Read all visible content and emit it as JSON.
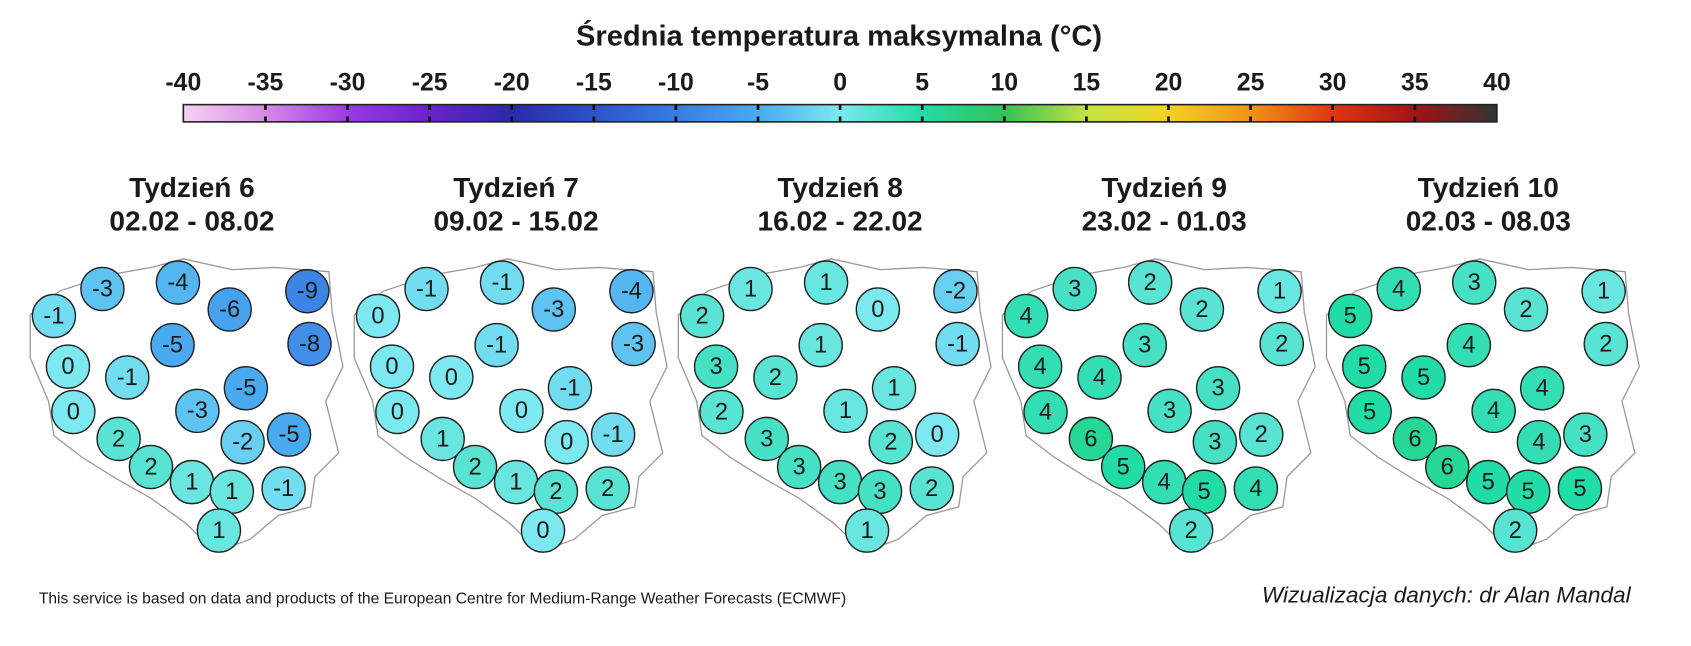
{
  "title": "Średnia temperatura maksymalna (°C)",
  "colorbar": {
    "ticks": [
      -40,
      -35,
      -30,
      -25,
      -20,
      -15,
      -10,
      -5,
      0,
      5,
      10,
      15,
      20,
      25,
      30,
      35,
      40
    ],
    "colors": [
      "#f6d2f2",
      "#d98ae6",
      "#9a3ae2",
      "#6a22c8",
      "#2a2aa8",
      "#2c52c8",
      "#3a7ce2",
      "#4aaaf0",
      "#7ce8f0",
      "#22dca6",
      "#34c258",
      "#c4e244",
      "#f2d224",
      "#f09418",
      "#e03414",
      "#a01414",
      "#333333"
    ]
  },
  "panels": [
    {
      "title": "Tydzień 6",
      "dates": "02.02 - 08.02",
      "values": [
        -3,
        -4,
        -9,
        -1,
        -6,
        -8,
        -5,
        0,
        -1,
        -5,
        0,
        -3,
        2,
        -2,
        -5,
        2,
        1,
        1,
        -1,
        1
      ]
    },
    {
      "title": "Tydzień 7",
      "dates": "09.02 - 15.02",
      "values": [
        -1,
        -1,
        -4,
        0,
        -3,
        -3,
        -1,
        0,
        0,
        -1,
        0,
        0,
        1,
        0,
        -1,
        2,
        1,
        2,
        2,
        0
      ]
    },
    {
      "title": "Tydzień 8",
      "dates": "16.02 - 22.02",
      "values": [
        1,
        1,
        -2,
        2,
        0,
        -1,
        1,
        3,
        2,
        1,
        2,
        1,
        3,
        2,
        0,
        3,
        3,
        3,
        2,
        1
      ]
    },
    {
      "title": "Tydzień 9",
      "dates": "23.02 - 01.03",
      "values": [
        3,
        2,
        1,
        4,
        2,
        2,
        3,
        4,
        4,
        3,
        4,
        3,
        6,
        3,
        2,
        5,
        4,
        5,
        4,
        2
      ]
    },
    {
      "title": "Tydzień 10",
      "dates": "02.03 - 08.03",
      "values": [
        4,
        3,
        1,
        5,
        2,
        2,
        4,
        5,
        5,
        4,
        5,
        4,
        6,
        4,
        3,
        6,
        5,
        5,
        5,
        2
      ]
    }
  ],
  "footer": {
    "source": "This service is based on data and products of the European Centre for Medium-Range Weather Forecasts (ECMWF)",
    "credit": "Wizualizacja danych: dr Alan Mandal"
  }
}
